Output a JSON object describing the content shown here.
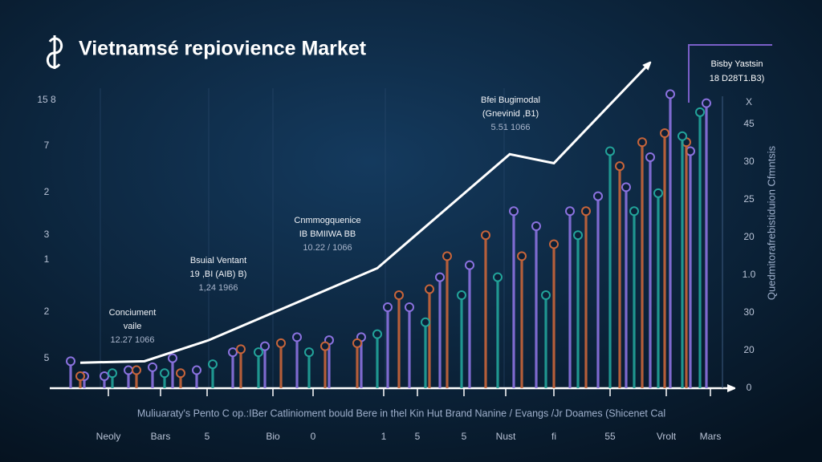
{
  "chart_data": {
    "type": "lollipop",
    "title": "Vietnamsé repiovience Market",
    "x_axis_title": "Muliuaraty's Pento C op.:IBer Catlinioment bould Bere in thel Kin Hut Brand Nanine / Evangs /Jr Doames (Shicenet Cal",
    "y_axis_title": "Quedmitorafrebistiduion Cfmntsis",
    "left_labels": [
      "15 8",
      "7",
      "2",
      "3",
      "1",
      "2",
      "5"
    ],
    "right_labels": [
      "X",
      "45",
      "30",
      "25",
      "20",
      "1.0",
      "30",
      "20",
      "0"
    ],
    "x_labels": [
      "Neoly",
      "Bars",
      "5",
      "Bio",
      "0",
      "1",
      "5",
      "5",
      "Nust",
      "fi",
      "55",
      "Vrolt",
      "Mars"
    ],
    "legend": {
      "title": "Bisby Yastsin",
      "subtitle": "18 D28T1.B3)"
    },
    "annotations": [
      {
        "lines": [
          "Conciument",
          "vaile",
          "12.27 1066"
        ]
      },
      {
        "lines": [
          "Bsuial Ventant",
          "19 ,BI (AIB) B)",
          "1,24 1966"
        ]
      },
      {
        "lines": [
          "Cnmmogquenice",
          "IB BMIIWA BB",
          "10.22 / 1066"
        ]
      },
      {
        "lines": [
          "Bfei Bugimodal",
          "(Gnevinid ,B1)",
          "5.51 1066"
        ]
      }
    ],
    "xlim": [
      60,
      900
    ],
    "ylim": [
      0,
      108
    ],
    "series": [
      {
        "color": "#8b72e0",
        "x": [
          88,
          105,
          130,
          160,
          190,
          215,
          245,
          290,
          330,
          370,
          410,
          450,
          483,
          510,
          548,
          585,
          640,
          668,
          710,
          745,
          780,
          810,
          835,
          860,
          880
        ],
        "values": [
          9,
          4,
          4,
          6,
          7,
          10,
          6,
          12,
          14,
          17,
          16,
          17,
          27,
          27,
          37,
          41,
          59,
          54,
          59,
          64,
          67,
          77,
          98,
          79,
          95
        ]
      },
      {
        "color": "#c8653a",
        "x": [
          100,
          170,
          225,
          300,
          350,
          405,
          445,
          497,
          535,
          557,
          605,
          650,
          690,
          730,
          772,
          800,
          828,
          855
        ],
        "values": [
          4,
          6,
          5,
          13,
          15,
          14,
          15,
          31,
          33,
          44,
          51,
          44,
          48,
          59,
          74,
          82,
          85,
          82
        ]
      },
      {
        "color": "#22a39a",
        "x": [
          140,
          205,
          265,
          322,
          385,
          470,
          530,
          575,
          620,
          680,
          720,
          760,
          790,
          820,
          850,
          872
        ],
        "values": [
          5,
          5,
          8,
          12,
          12,
          18,
          22,
          31,
          37,
          31,
          51,
          79,
          59,
          65,
          84,
          92
        ]
      }
    ],
    "trend": {
      "color": "#ffffff",
      "x": [
        100,
        180,
        260,
        470,
        635,
        690,
        808
      ],
      "values": [
        8.5,
        9,
        16,
        40,
        78,
        75,
        108
      ]
    }
  }
}
